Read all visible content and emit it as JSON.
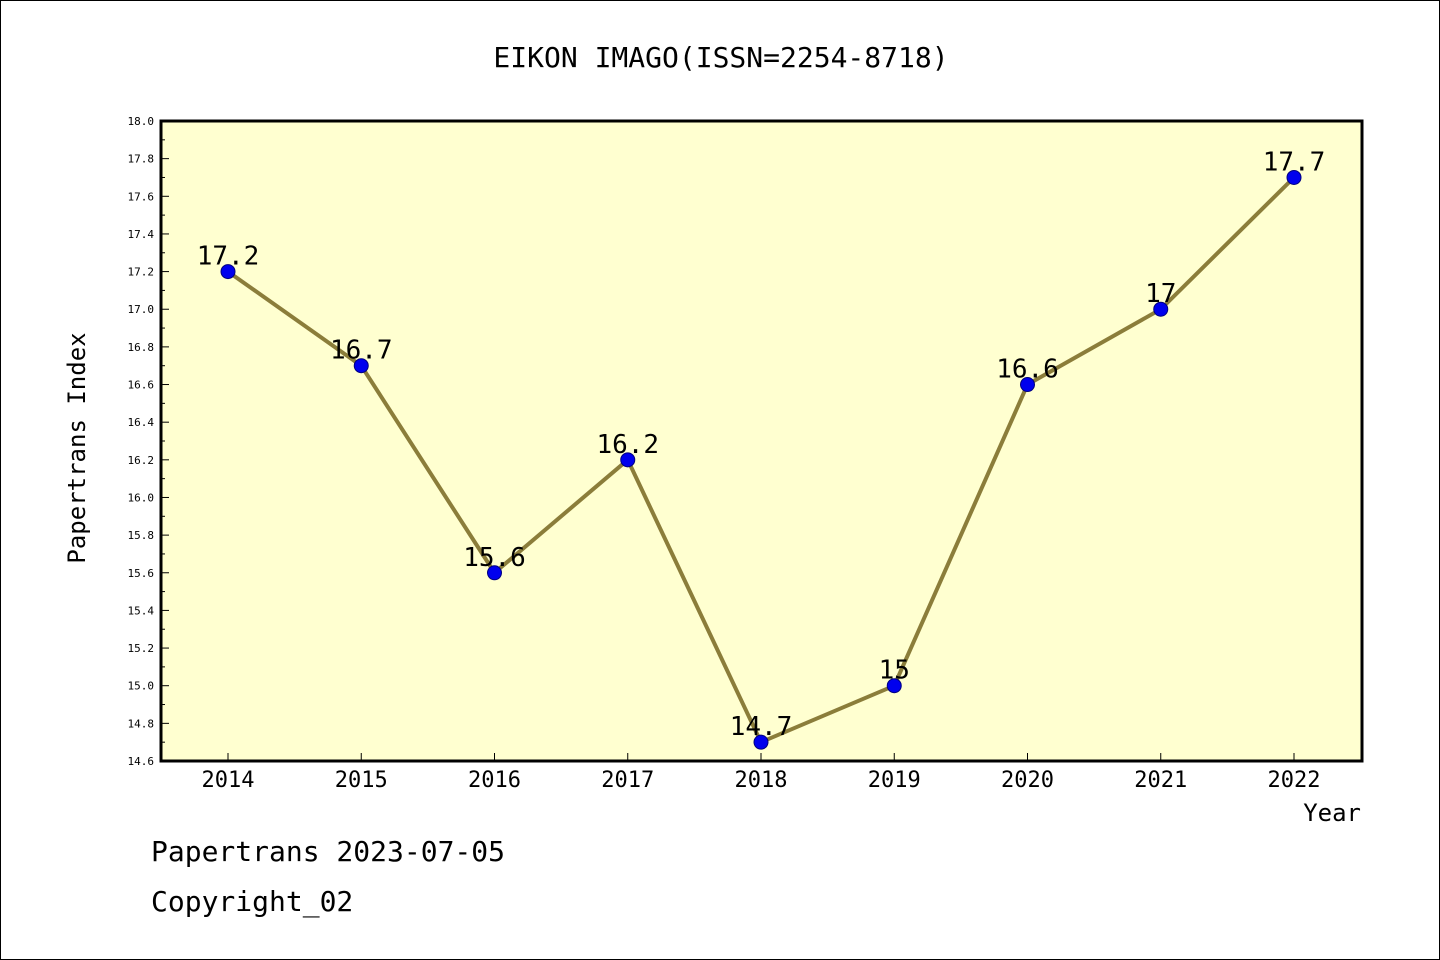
{
  "chart_data": {
    "type": "line",
    "title": "EIKON IMAGO(ISSN=2254-8718)",
    "xlabel": "Year",
    "ylabel": "Papertrans Index",
    "categories": [
      "2014",
      "2015",
      "2016",
      "2017",
      "2018",
      "2019",
      "2020",
      "2021",
      "2022"
    ],
    "values": [
      17.2,
      16.7,
      15.6,
      16.2,
      14.7,
      15,
      16.6,
      17,
      17.7
    ],
    "data_labels": [
      "17.2",
      "16.7",
      "15.6",
      "16.2",
      "14.7",
      "15",
      "16.6",
      "17",
      "17.7"
    ],
    "ylim": [
      14.6,
      18.0
    ],
    "yticks": [
      "14.6",
      "14.8",
      "15.0",
      "15.2",
      "15.4",
      "15.6",
      "15.8",
      "16.0",
      "16.2",
      "16.4",
      "16.6",
      "16.8",
      "17.0",
      "17.2",
      "17.4",
      "17.6",
      "17.8",
      "18.0"
    ],
    "grid": false,
    "legend": "none",
    "colors": {
      "plot_background": "#ffffd0",
      "line": "#8b7d3a",
      "marker": "#0000ee",
      "marker_edge": "#000080"
    }
  },
  "footer": {
    "line1": "Papertrans 2023-07-05",
    "line2": "Copyright_02"
  }
}
